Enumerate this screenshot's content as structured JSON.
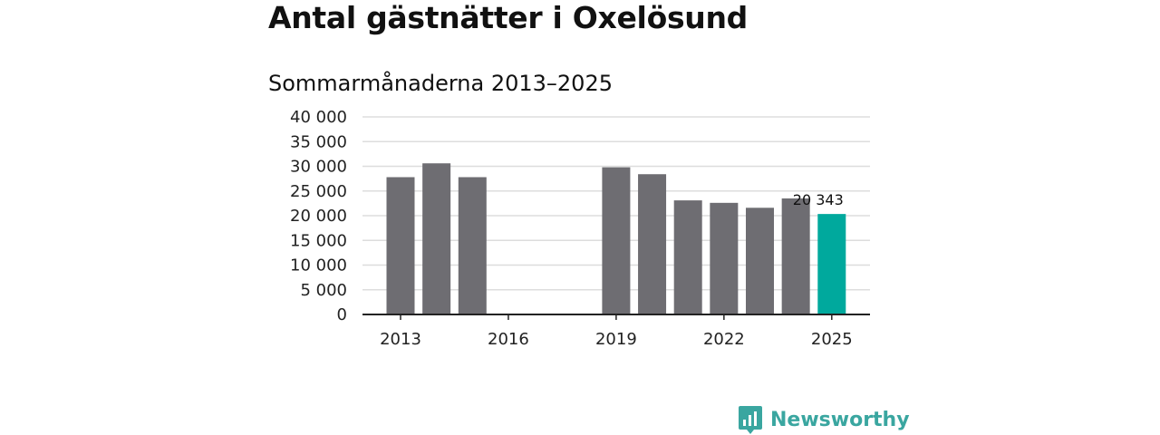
{
  "chart_data": {
    "type": "bar",
    "title": "Antal gästnätter i Oxelösund",
    "subtitle": "Sommarmånaderna 2013–2025",
    "x": [
      2013,
      2014,
      2015,
      2016,
      2017,
      2018,
      2019,
      2020,
      2021,
      2022,
      2023,
      2024,
      2025
    ],
    "values": [
      27800,
      30600,
      27800,
      null,
      null,
      null,
      29800,
      28400,
      23100,
      22600,
      21600,
      23500,
      20343
    ],
    "x_ticks": [
      "2013",
      "2016",
      "2019",
      "2022",
      "2025"
    ],
    "y_ticks": [
      "0",
      "5 000",
      "10 000",
      "15 000",
      "20 000",
      "25 000",
      "30 000",
      "35 000",
      "40 000"
    ],
    "ylim": [
      0,
      40000
    ],
    "highlight": {
      "x": 2025,
      "label": "20 343"
    },
    "grid": true,
    "colors": {
      "bar": "#6e6d72",
      "highlight": "#00a99d",
      "grid": "#dddddd",
      "axis": "#222222"
    }
  },
  "brand": {
    "name": "Newsworthy",
    "icon": "newsworthy-logo-icon",
    "color": "#3aa6a0"
  }
}
